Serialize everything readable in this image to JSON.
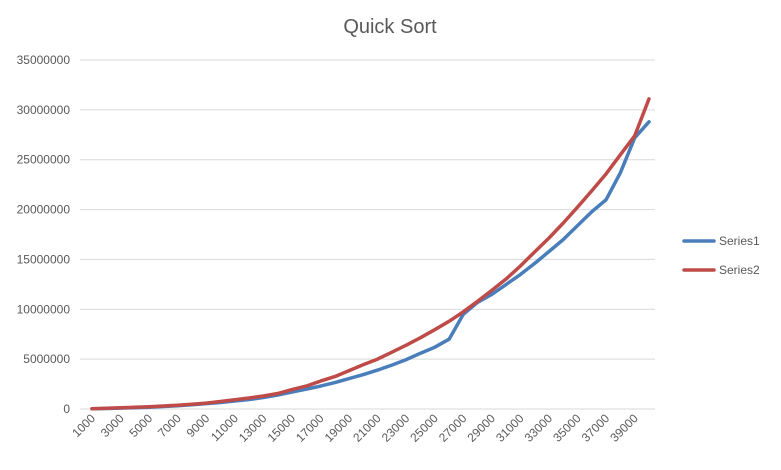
{
  "chart_data": {
    "type": "line",
    "title": "Quick Sort",
    "xlabel": "",
    "ylabel": "",
    "ylim": [
      0,
      35000000
    ],
    "yticks": [
      "0",
      "5000000",
      "10000000",
      "15000000",
      "20000000",
      "25000000",
      "30000000",
      "35000000"
    ],
    "grid": true,
    "legend": "right",
    "x": [
      1000,
      2000,
      3000,
      4000,
      5000,
      6000,
      7000,
      8000,
      9000,
      10000,
      11000,
      12000,
      13000,
      14000,
      15000,
      16000,
      17000,
      18000,
      19000,
      20000,
      21000,
      22000,
      23000,
      24000,
      25000,
      26000,
      27000,
      28000,
      29000,
      30000,
      31000,
      32000,
      33000,
      34000,
      35000,
      36000,
      37000,
      38000,
      39000,
      40000
    ],
    "xtick_labels": [
      "1000",
      "3000",
      "5000",
      "7000",
      "9000",
      "11000",
      "13000",
      "15000",
      "17000",
      "19000",
      "21000",
      "23000",
      "25000",
      "27000",
      "29000",
      "31000",
      "33000",
      "35000",
      "37000",
      "39000"
    ],
    "series": [
      {
        "name": "Series1",
        "color": "#4a7ebb",
        "values": [
          18000,
          55000,
          95000,
          130000,
          180000,
          250000,
          330000,
          430000,
          540000,
          650000,
          800000,
          950000,
          1150000,
          1400000,
          1700000,
          2000000,
          2300000,
          2650000,
          3050000,
          3450000,
          3900000,
          4400000,
          4950000,
          5600000,
          6200000,
          7000000,
          9500000,
          10700000,
          11500000,
          12500000,
          13500000,
          14600000,
          15800000,
          17000000,
          18400000,
          19800000,
          21000000,
          23700000,
          27200000,
          28800000
        ]
      },
      {
        "name": "Series2",
        "color": "#be4b48",
        "values": [
          25000,
          70000,
          120000,
          170000,
          220000,
          300000,
          380000,
          480000,
          590000,
          750000,
          920000,
          1100000,
          1300000,
          1550000,
          1950000,
          2300000,
          2800000,
          3250000,
          3850000,
          4450000,
          5000000,
          5700000,
          6400000,
          7150000,
          7950000,
          8800000,
          9750000,
          10800000,
          11900000,
          13050000,
          14350000,
          15750000,
          17150000,
          18650000,
          20250000,
          21900000,
          23600000,
          25500000,
          27400000,
          31100000
        ]
      }
    ]
  }
}
